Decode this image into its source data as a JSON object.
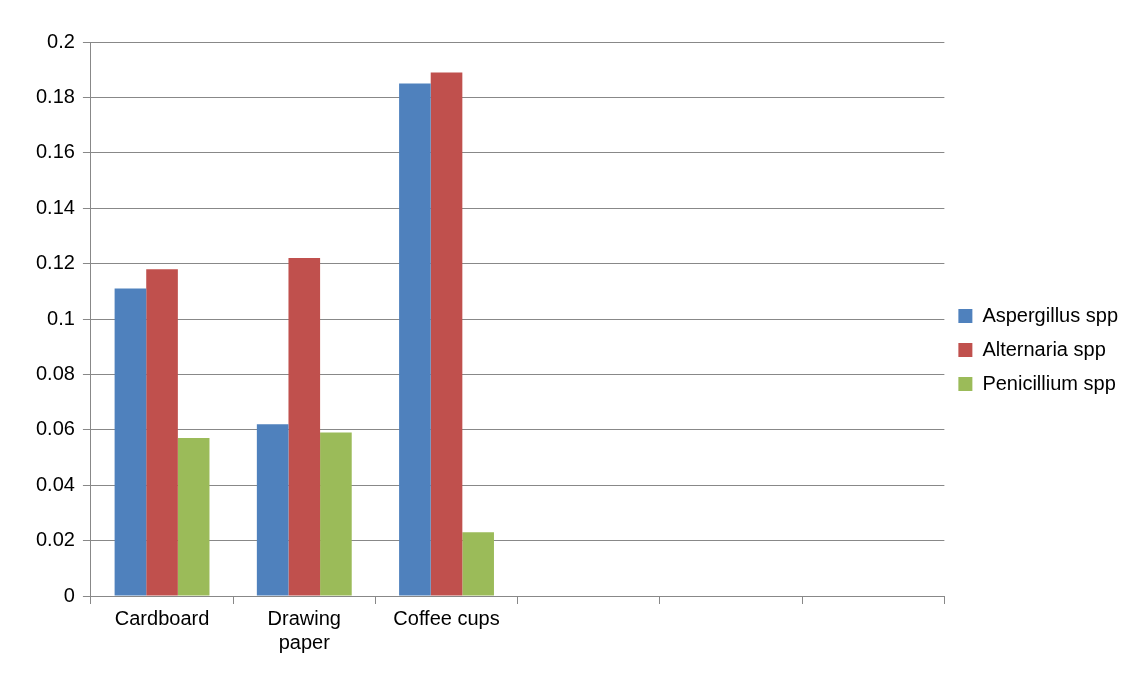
{
  "chart_data": {
    "type": "bar",
    "categories": [
      "Cardboard",
      "Drawing paper",
      "Coffee cups",
      null,
      null,
      null
    ],
    "series": [
      {
        "name": "Aspergillus spp",
        "color": "#4f81bd",
        "values": [
          0.111,
          0.062,
          0.185,
          null,
          null,
          null
        ]
      },
      {
        "name": "Alternaria spp",
        "color": "#c0504d",
        "values": [
          0.118,
          0.122,
          0.189,
          null,
          null,
          null
        ]
      },
      {
        "name": "Penicillium spp",
        "color": "#9bbb59",
        "values": [
          0.057,
          0.059,
          0.023,
          null,
          null,
          null
        ]
      }
    ],
    "ylim": [
      0,
      0.2
    ],
    "yticks": [
      0,
      0.02,
      0.04,
      0.06,
      0.08,
      0.1,
      0.12,
      0.14,
      0.16,
      0.18,
      0.2
    ],
    "grid": "y",
    "legend": "right"
  }
}
